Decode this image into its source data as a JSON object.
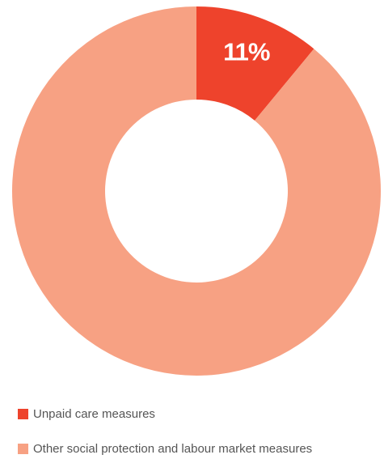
{
  "chart_data": {
    "type": "donut",
    "categories": [
      "Unpaid care measures",
      "Other social protection and labour market measures"
    ],
    "values": [
      11,
      89
    ],
    "value_labels": [
      "11%",
      null
    ],
    "colors": [
      "#ee432c",
      "#f7a183"
    ]
  }
}
